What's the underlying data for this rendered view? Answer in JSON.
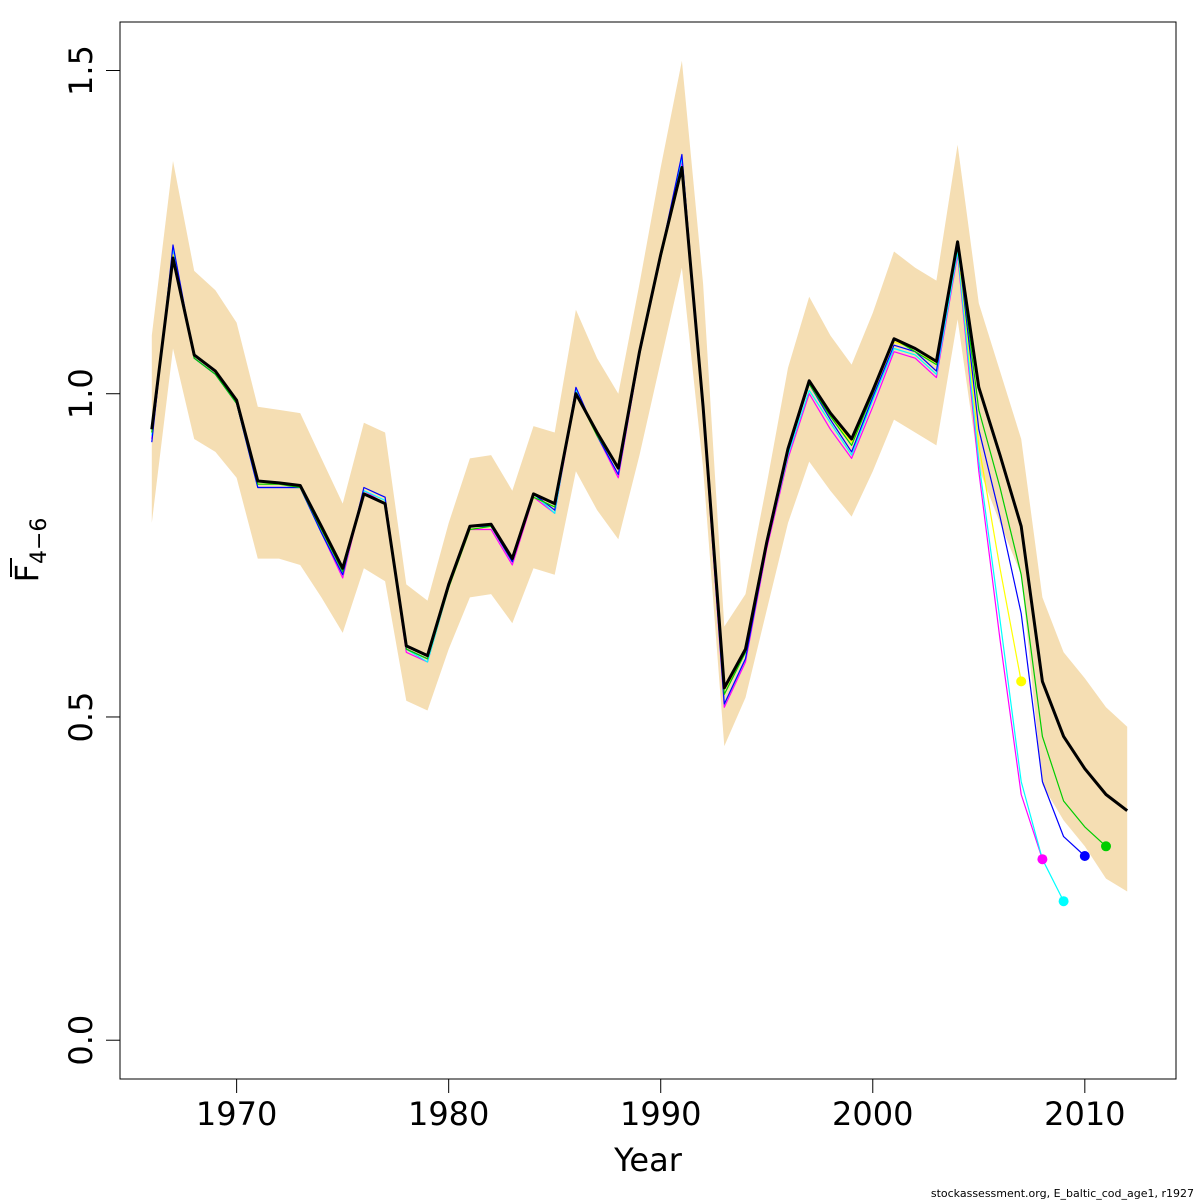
{
  "chart_data": {
    "type": "line",
    "xlabel": "Year",
    "ylabel": "F",
    "ylabel_subscript": "4−6",
    "xlim": [
      1964.5,
      2014.3
    ],
    "ylim": [
      -0.06,
      1.575
    ],
    "x_ticks": [
      1970,
      1980,
      1990,
      2000,
      2010
    ],
    "y_ticks": [
      0.0,
      0.5,
      1.0,
      1.5
    ],
    "y_tick_labels": [
      "0.0",
      "0.5",
      "1.0",
      "1.5"
    ],
    "band_color": "#f5deb3",
    "grid": false,
    "confidence_band": {
      "x": [
        1966,
        1967,
        1968,
        1969,
        1970,
        1971,
        1972,
        1973,
        1974,
        1975,
        1976,
        1977,
        1978,
        1979,
        1980,
        1981,
        1982,
        1983,
        1984,
        1985,
        1986,
        1987,
        1988,
        1989,
        1990,
        1991,
        1992,
        1993,
        1994,
        1995,
        1996,
        1997,
        1998,
        1999,
        2000,
        2001,
        2002,
        2003,
        2004,
        2005,
        2006,
        2007,
        2008,
        2009,
        2010,
        2011,
        2012
      ],
      "upper": [
        1.09,
        1.36,
        1.19,
        1.16,
        1.11,
        0.98,
        0.975,
        0.97,
        0.9,
        0.83,
        0.955,
        0.94,
        0.705,
        0.68,
        0.8,
        0.9,
        0.905,
        0.85,
        0.95,
        0.94,
        1.13,
        1.055,
        1.0,
        1.17,
        1.35,
        1.515,
        1.17,
        0.64,
        0.69,
        0.86,
        1.04,
        1.15,
        1.09,
        1.045,
        1.125,
        1.22,
        1.195,
        1.175,
        1.385,
        1.14,
        1.035,
        0.93,
        0.685,
        0.6,
        0.56,
        0.515,
        0.485
      ],
      "lower": [
        0.8,
        1.07,
        0.93,
        0.91,
        0.87,
        0.745,
        0.745,
        0.735,
        0.685,
        0.63,
        0.73,
        0.71,
        0.525,
        0.51,
        0.605,
        0.685,
        0.69,
        0.645,
        0.73,
        0.72,
        0.88,
        0.82,
        0.775,
        0.905,
        1.05,
        1.195,
        0.885,
        0.455,
        0.53,
        0.665,
        0.8,
        0.895,
        0.85,
        0.81,
        0.88,
        0.96,
        0.94,
        0.92,
        1.115,
        0.885,
        0.8,
        0.72,
        0.395,
        0.34,
        0.3,
        0.25,
        0.23
      ]
    },
    "series": [
      {
        "color": "#ff00ff",
        "x": [
          1966,
          1967,
          1968,
          1969,
          1970,
          1971,
          1972,
          1973,
          1974,
          1975,
          1976,
          1977,
          1978,
          1979,
          1980,
          1981,
          1982,
          1983,
          1984,
          1985,
          1986,
          1987,
          1988,
          1989,
          1990,
          1991,
          1992,
          1993,
          1994,
          1995,
          1996,
          1997,
          1998,
          1999,
          2000,
          2001,
          2002,
          2003,
          2004,
          2005,
          2006,
          2007,
          2008
        ],
        "values": [
          0.93,
          1.22,
          1.055,
          1.03,
          0.985,
          0.855,
          0.855,
          0.855,
          0.785,
          0.715,
          0.85,
          0.83,
          0.6,
          0.585,
          0.7,
          0.79,
          0.79,
          0.735,
          0.84,
          0.815,
          1.0,
          0.935,
          0.87,
          1.06,
          1.21,
          1.36,
          0.97,
          0.515,
          0.585,
          0.76,
          0.9,
          1.0,
          0.945,
          0.9,
          0.98,
          1.065,
          1.055,
          1.025,
          1.215,
          0.88,
          0.62,
          0.38,
          0.28
        ],
        "end_marker": true
      },
      {
        "color": "#00ffff",
        "x": [
          1966,
          1967,
          1968,
          1969,
          1970,
          1971,
          1972,
          1973,
          1974,
          1975,
          1976,
          1977,
          1978,
          1979,
          1980,
          1981,
          1982,
          1983,
          1984,
          1985,
          1986,
          1987,
          1988,
          1989,
          1990,
          1991,
          1992,
          1993,
          1994,
          1995,
          1996,
          1997,
          1998,
          1999,
          2000,
          2001,
          2002,
          2003,
          2004,
          2005,
          2006,
          2007,
          2008,
          2009
        ],
        "values": [
          0.935,
          1.225,
          1.055,
          1.03,
          0.985,
          0.855,
          0.855,
          0.855,
          0.785,
          0.72,
          0.85,
          0.835,
          0.605,
          0.585,
          0.7,
          0.795,
          0.795,
          0.74,
          0.845,
          0.815,
          1.005,
          0.935,
          0.875,
          1.06,
          1.215,
          1.365,
          0.975,
          0.52,
          0.59,
          0.765,
          0.905,
          1.005,
          0.955,
          0.905,
          0.99,
          1.07,
          1.06,
          1.03,
          1.22,
          0.895,
          0.65,
          0.4,
          0.28,
          0.215
        ],
        "end_marker": true
      },
      {
        "color": "#ffff00",
        "x": [
          1966,
          1967,
          1968,
          1969,
          1970,
          1971,
          1972,
          1973,
          1974,
          1975,
          1976,
          1977,
          1978,
          1979,
          1980,
          1981,
          1982,
          1983,
          1984,
          1985,
          1986,
          1987,
          1988,
          1989,
          1990,
          1991,
          1992,
          1993,
          1994,
          1995,
          1996,
          1997,
          1998,
          1999,
          2000,
          2001,
          2002,
          2003,
          2004,
          2005,
          2006,
          2007
        ],
        "values": [
          0.94,
          1.215,
          1.055,
          1.03,
          0.985,
          0.86,
          0.86,
          0.855,
          0.79,
          0.725,
          0.845,
          0.83,
          0.605,
          0.59,
          0.7,
          0.79,
          0.795,
          0.745,
          0.84,
          0.825,
          1.0,
          0.935,
          0.885,
          1.06,
          1.21,
          1.345,
          0.975,
          0.535,
          0.605,
          0.775,
          0.915,
          1.015,
          0.965,
          0.925,
          1.0,
          1.08,
          1.07,
          1.045,
          1.23,
          0.92,
          0.73,
          0.555
        ],
        "end_marker": true
      },
      {
        "color": "#0000ff",
        "x": [
          1966,
          1967,
          1968,
          1969,
          1970,
          1971,
          1972,
          1973,
          1974,
          1975,
          1976,
          1977,
          1978,
          1979,
          1980,
          1981,
          1982,
          1983,
          1984,
          1985,
          1986,
          1987,
          1988,
          1989,
          1990,
          1991,
          1992,
          1993,
          1994,
          1995,
          1996,
          1997,
          1998,
          1999,
          2000,
          2001,
          2002,
          2003,
          2004,
          2005,
          2006,
          2007,
          2008,
          2009,
          2010
        ],
        "values": [
          0.925,
          1.23,
          1.055,
          1.03,
          0.985,
          0.855,
          0.855,
          0.855,
          0.785,
          0.72,
          0.855,
          0.84,
          0.605,
          0.59,
          0.705,
          0.795,
          0.795,
          0.74,
          0.845,
          0.82,
          1.01,
          0.935,
          0.875,
          1.06,
          1.215,
          1.37,
          0.975,
          0.52,
          0.59,
          0.765,
          0.91,
          1.015,
          0.96,
          0.91,
          0.995,
          1.075,
          1.065,
          1.035,
          1.235,
          0.945,
          0.81,
          0.66,
          0.4,
          0.315,
          0.285
        ],
        "end_marker": true
      },
      {
        "color": "#00cd00",
        "x": [
          1966,
          1967,
          1968,
          1969,
          1970,
          1971,
          1972,
          1973,
          1974,
          1975,
          1976,
          1977,
          1978,
          1979,
          1980,
          1981,
          1982,
          1983,
          1984,
          1985,
          1986,
          1987,
          1988,
          1989,
          1990,
          1991,
          1992,
          1993,
          1994,
          1995,
          1996,
          1997,
          1998,
          1999,
          2000,
          2001,
          2002,
          2003,
          2004,
          2005,
          2006,
          2007,
          2008,
          2009,
          2010,
          2011
        ],
        "values": [
          0.94,
          1.21,
          1.055,
          1.03,
          0.985,
          0.86,
          0.86,
          0.855,
          0.79,
          0.725,
          0.845,
          0.83,
          0.605,
          0.59,
          0.7,
          0.79,
          0.795,
          0.745,
          0.84,
          0.825,
          1.0,
          0.935,
          0.885,
          1.065,
          1.21,
          1.35,
          0.975,
          0.535,
          0.6,
          0.775,
          0.915,
          1.015,
          0.965,
          0.92,
          1.0,
          1.085,
          1.065,
          1.045,
          1.235,
          0.975,
          0.855,
          0.72,
          0.47,
          0.37,
          0.33,
          0.3
        ],
        "end_marker": true
      },
      {
        "color": "#000000",
        "bold": true,
        "x": [
          1966,
          1967,
          1968,
          1969,
          1970,
          1971,
          1972,
          1973,
          1974,
          1975,
          1976,
          1977,
          1978,
          1979,
          1980,
          1981,
          1982,
          1983,
          1984,
          1985,
          1986,
          1987,
          1988,
          1989,
          1990,
          1991,
          1992,
          1993,
          1994,
          1995,
          1996,
          1997,
          1998,
          1999,
          2000,
          2001,
          2002,
          2003,
          2004,
          2005,
          2006,
          2007,
          2008,
          2009,
          2010,
          2011,
          2012
        ],
        "values": [
          0.945,
          1.21,
          1.06,
          1.035,
          0.99,
          0.865,
          0.862,
          0.858,
          0.795,
          0.73,
          0.845,
          0.83,
          0.61,
          0.595,
          0.705,
          0.795,
          0.798,
          0.745,
          0.845,
          0.83,
          1.0,
          0.94,
          0.885,
          1.065,
          1.215,
          1.35,
          0.98,
          0.545,
          0.605,
          0.77,
          0.915,
          1.02,
          0.97,
          0.93,
          1.005,
          1.085,
          1.07,
          1.05,
          1.235,
          1.01,
          0.905,
          0.795,
          0.555,
          0.47,
          0.42,
          0.38,
          0.355
        ],
        "end_marker": false
      }
    ]
  },
  "footer": "stockassessment.org, E_baltic_cod_age1, r1927"
}
